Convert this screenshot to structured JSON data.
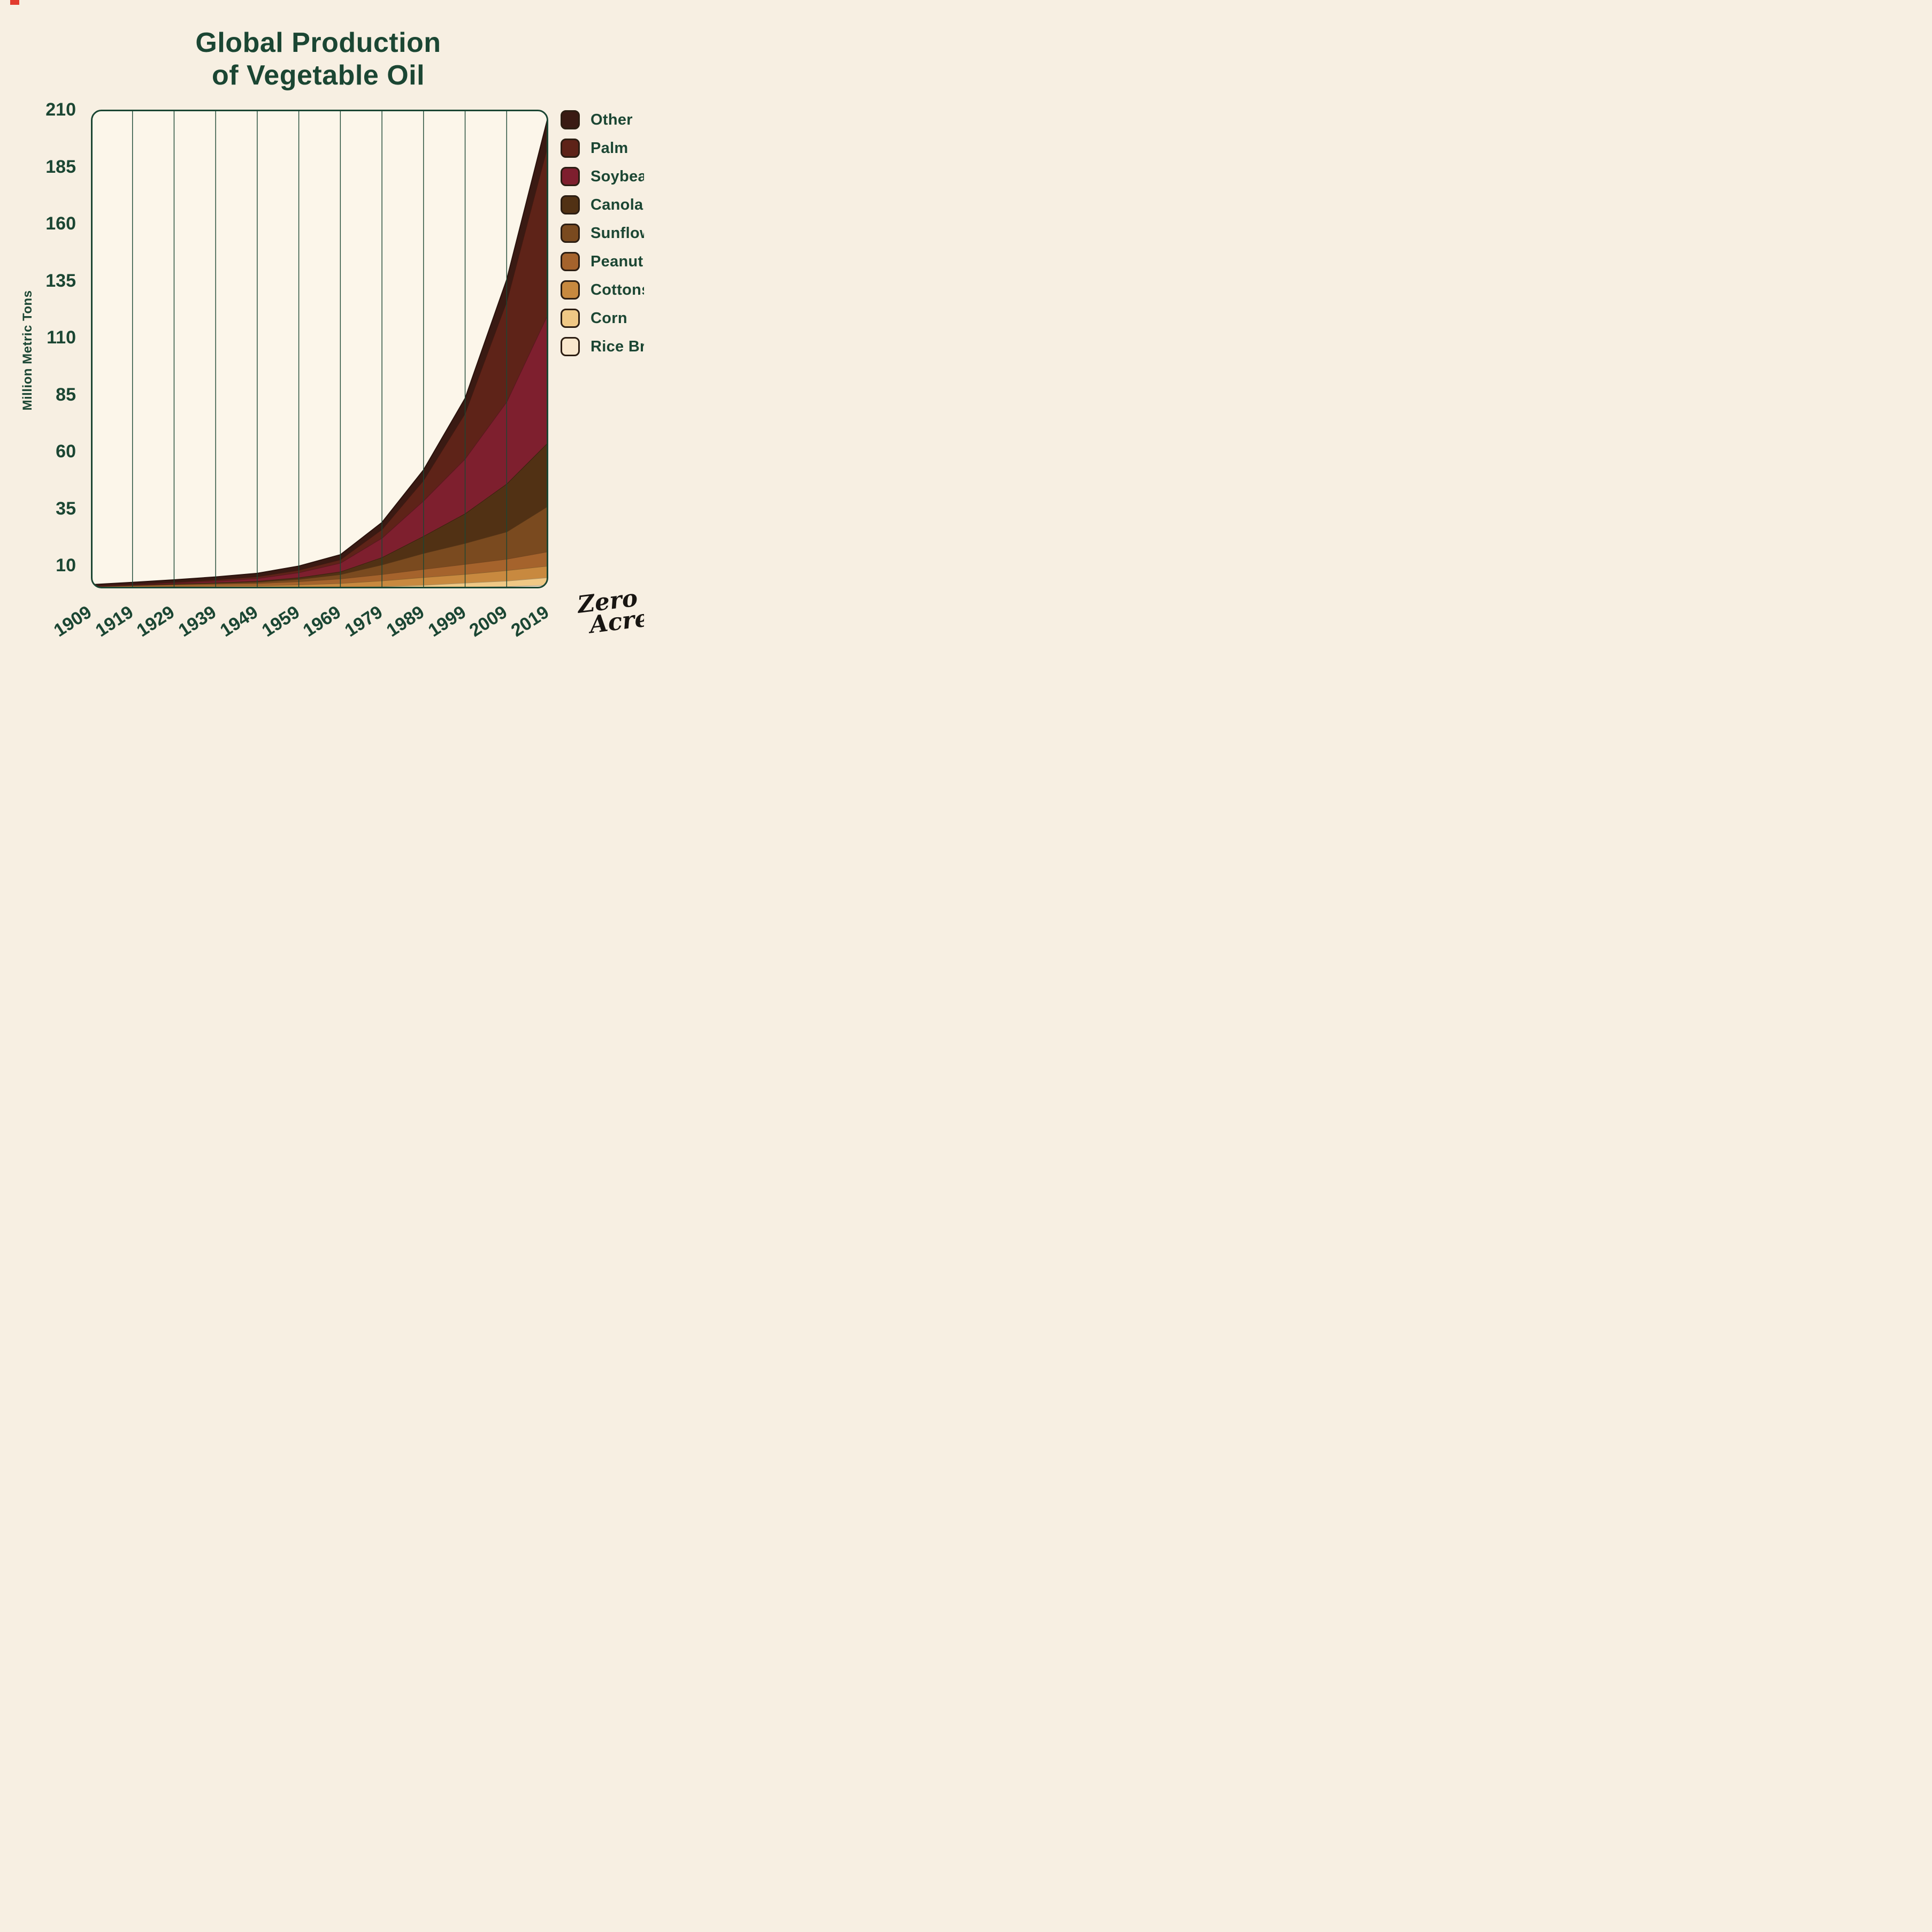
{
  "title_lines": [
    "Global Production",
    "of Vegetable Oil"
  ],
  "logo": {
    "line1": "Zero",
    "line2": "Acre"
  },
  "colors": {
    "background": "#f7efe2",
    "plot_bg": "#fcf6ea",
    "line": "#1b4633",
    "text": "#1b4633",
    "logo": "#181512",
    "corner_mark": "#e23b2e",
    "swatch_border": "#2b1d12"
  },
  "chart_data": {
    "type": "area",
    "stacked": true,
    "title": "Global Production of Vegetable Oil",
    "ylabel": "Million Metric Tons",
    "xlabel": "",
    "grid": "vertical",
    "legend_position": "right",
    "x": [
      1909,
      1919,
      1929,
      1939,
      1949,
      1959,
      1969,
      1979,
      1989,
      1999,
      2009,
      2019
    ],
    "ylim": [
      0,
      210
    ],
    "yticks_display": [
      210,
      185,
      160,
      135,
      110,
      85,
      60,
      35,
      10
    ],
    "series_note": "listed top-of-stack first (legend order); stacking bottom-to-top is reverse order",
    "series": [
      {
        "name": "Other",
        "color": "#3a1a13",
        "values": [
          0.5,
          0.8,
          1.0,
          1.2,
          1.4,
          1.7,
          2.1,
          3.0,
          4.5,
          6.5,
          9.5,
          12.0
        ]
      },
      {
        "name": "Palm",
        "color": "#5e2318",
        "values": [
          0.15,
          0.25,
          0.4,
          0.6,
          0.8,
          1.1,
          1.5,
          3.8,
          9.0,
          20.0,
          44.0,
          74.6
        ]
      },
      {
        "name": "Soybean",
        "color": "#7e1f2e",
        "values": [
          0.05,
          0.15,
          0.35,
          0.7,
          1.2,
          2.2,
          3.8,
          8.5,
          15.5,
          24.0,
          36.0,
          56.5
        ]
      },
      {
        "name": "Canola",
        "color": "#513114",
        "values": [
          0.05,
          0.1,
          0.15,
          0.25,
          0.4,
          0.7,
          1.2,
          3.2,
          7.5,
          13.0,
          21.0,
          27.9
        ]
      },
      {
        "name": "Sunflower",
        "color": "#7a4a1f",
        "values": [
          0.05,
          0.1,
          0.2,
          0.35,
          0.55,
          1.0,
          1.9,
          4.2,
          7.0,
          9.2,
          12.0,
          20.0
        ]
      },
      {
        "name": "Peanut",
        "color": "#a5632c",
        "values": [
          0.35,
          0.55,
          0.7,
          0.85,
          1.0,
          1.4,
          2.0,
          2.8,
          3.6,
          4.4,
          5.0,
          6.3
        ]
      },
      {
        "name": "Cottonseed",
        "color": "#c8893f",
        "values": [
          0.4,
          0.6,
          0.8,
          0.9,
          1.0,
          1.3,
          1.7,
          2.5,
          3.4,
          3.8,
          4.6,
          5.1
        ]
      },
      {
        "name": "Corn",
        "color": "#f0c885",
        "values": [
          0.02,
          0.04,
          0.06,
          0.08,
          0.12,
          0.2,
          0.35,
          0.6,
          1.0,
          1.8,
          2.4,
          3.3
        ]
      },
      {
        "name": "Rice Bran",
        "color": "#f9e7cd",
        "values": [
          0.05,
          0.07,
          0.09,
          0.1,
          0.12,
          0.15,
          0.2,
          0.3,
          0.45,
          0.65,
          0.9,
          1.5
        ]
      }
    ]
  }
}
